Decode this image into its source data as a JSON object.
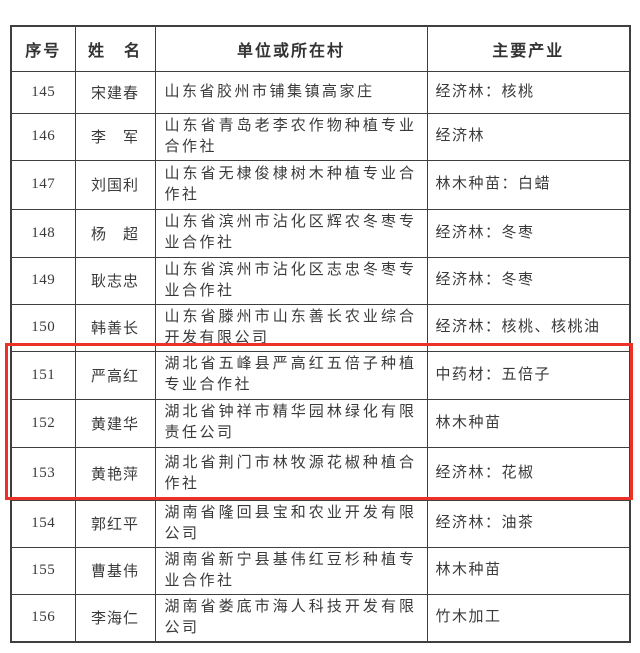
{
  "table": {
    "columns": [
      {
        "label": "序号"
      },
      {
        "label": "姓　名"
      },
      {
        "label": "单位或所在村"
      },
      {
        "label": "主要产业"
      }
    ],
    "rows": [
      {
        "no": "145",
        "name": "宋建春",
        "unit": "山东省胶州市铺集镇高家庄",
        "industry": "经济林：核桃",
        "highlighted": false
      },
      {
        "no": "146",
        "name": "李　军",
        "unit": "山东省青岛老李农作物种植专业合作社",
        "industry": "经济林",
        "highlighted": false
      },
      {
        "no": "147",
        "name": "刘国利",
        "unit": "山东省无棣俊棣树木种植专业合作社",
        "industry": "林木种苗：白蜡",
        "highlighted": false
      },
      {
        "no": "148",
        "name": "杨　超",
        "unit": "山东省滨州市沾化区辉农冬枣专业合作社",
        "industry": "经济林：冬枣",
        "highlighted": false
      },
      {
        "no": "149",
        "name": "耿志忠",
        "unit": "山东省滨州市沾化区志忠冬枣专业合作社",
        "industry": "经济林：冬枣",
        "highlighted": false
      },
      {
        "no": "150",
        "name": "韩善长",
        "unit": "山东省滕州市山东善长农业综合开发有限公司",
        "industry": "经济林：核桃、核桃油",
        "highlighted": false
      },
      {
        "no": "151",
        "name": "严高红",
        "unit": "湖北省五峰县严高红五倍子种植专业合作社",
        "industry": "中药材：五倍子",
        "highlighted": true
      },
      {
        "no": "152",
        "name": "黄建华",
        "unit": "湖北省钟祥市精华园林绿化有限责任公司",
        "industry": "林木种苗",
        "highlighted": true
      },
      {
        "no": "153",
        "name": "黄艳萍",
        "unit": "湖北省荆门市林牧源花椒种植合作社",
        "industry": "经济林：花椒",
        "highlighted": true
      },
      {
        "no": "154",
        "name": "郭红平",
        "unit": "湖南省隆回县宝和农业开发有限公司",
        "industry": "经济林：油茶",
        "highlighted": false
      },
      {
        "no": "155",
        "name": "曹基伟",
        "unit": "湖南省新宁县基伟红豆杉种植专业合作社",
        "industry": "林木种苗",
        "highlighted": false
      },
      {
        "no": "156",
        "name": "李海仁",
        "unit": "湖南省娄底市海人科技开发有限公司",
        "industry": "竹木加工",
        "highlighted": false
      }
    ]
  },
  "highlight": {
    "highlighted_row_numbers": [
      "151",
      "152",
      "153"
    ],
    "color": "#ee3126"
  },
  "colors": {
    "table_border": "#3f3f3f",
    "text": "#3a3a3a",
    "background": "#ffffff",
    "highlight_red": "#ee3126"
  }
}
